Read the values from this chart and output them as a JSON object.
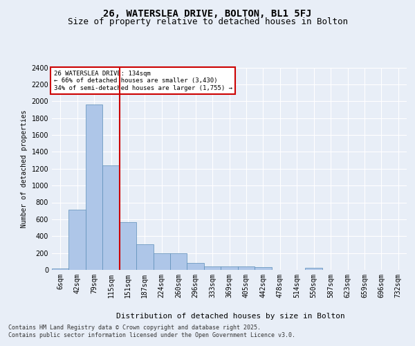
{
  "title1": "26, WATERSLEA DRIVE, BOLTON, BL1 5FJ",
  "title2": "Size of property relative to detached houses in Bolton",
  "xlabel": "Distribution of detached houses by size in Bolton",
  "ylabel": "Number of detached properties",
  "categories": [
    "6sqm",
    "42sqm",
    "79sqm",
    "115sqm",
    "151sqm",
    "187sqm",
    "224sqm",
    "260sqm",
    "296sqm",
    "333sqm",
    "369sqm",
    "405sqm",
    "442sqm",
    "478sqm",
    "514sqm",
    "550sqm",
    "587sqm",
    "623sqm",
    "659sqm",
    "696sqm",
    "732sqm"
  ],
  "values": [
    15,
    710,
    1960,
    1240,
    570,
    305,
    200,
    200,
    80,
    45,
    40,
    40,
    35,
    0,
    0,
    25,
    0,
    0,
    0,
    0,
    0
  ],
  "bar_color": "#aec6e8",
  "bar_edge_color": "#5b8db8",
  "vline_x": 4.0,
  "vline_color": "#cc0000",
  "annotation_title": "26 WATERSLEA DRIVE: 134sqm",
  "annotation_line1": "← 66% of detached houses are smaller (3,430)",
  "annotation_line2": "34% of semi-detached houses are larger (1,755) →",
  "annotation_box_color": "#cc0000",
  "ylim": [
    0,
    2400
  ],
  "yticks": [
    0,
    200,
    400,
    600,
    800,
    1000,
    1200,
    1400,
    1600,
    1800,
    2000,
    2200,
    2400
  ],
  "footer1": "Contains HM Land Registry data © Crown copyright and database right 2025.",
  "footer2": "Contains public sector information licensed under the Open Government Licence v3.0.",
  "bg_color": "#e8eef7",
  "plot_bg_color": "#e8eef7",
  "grid_color": "#ffffff",
  "title1_fontsize": 10,
  "title2_fontsize": 9,
  "axis_fontsize": 7,
  "ylabel_fontsize": 7,
  "xlabel_fontsize": 8,
  "footer_fontsize": 6,
  "annot_fontsize": 6.5
}
